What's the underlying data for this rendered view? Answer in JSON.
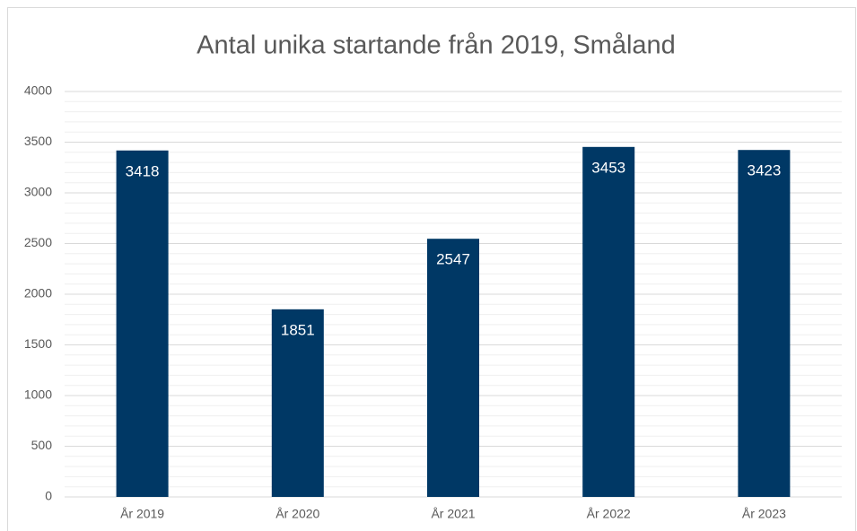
{
  "chart_data": {
    "type": "bar",
    "title": "Antal unika startande från 2019, Småland",
    "categories": [
      "År 2019",
      "År 2020",
      "År 2021",
      "År 2022",
      "År 2023"
    ],
    "values": [
      3418,
      1851,
      2547,
      3453,
      3423
    ],
    "color": "#003865",
    "label_color": "#ffffff",
    "ylim": [
      0,
      4000
    ],
    "yticks": [
      0,
      500,
      1000,
      1500,
      2000,
      2500,
      3000,
      3500,
      4000
    ],
    "minor_yticks": [
      100,
      200,
      300,
      400,
      600,
      700,
      800,
      900,
      1100,
      1200,
      1300,
      1400,
      1600,
      1700,
      1800,
      1900,
      2100,
      2200,
      2300,
      2400,
      2600,
      2700,
      2800,
      2900,
      3100,
      3200,
      3300,
      3400,
      3600,
      3700,
      3800,
      3900
    ],
    "grid": true
  }
}
